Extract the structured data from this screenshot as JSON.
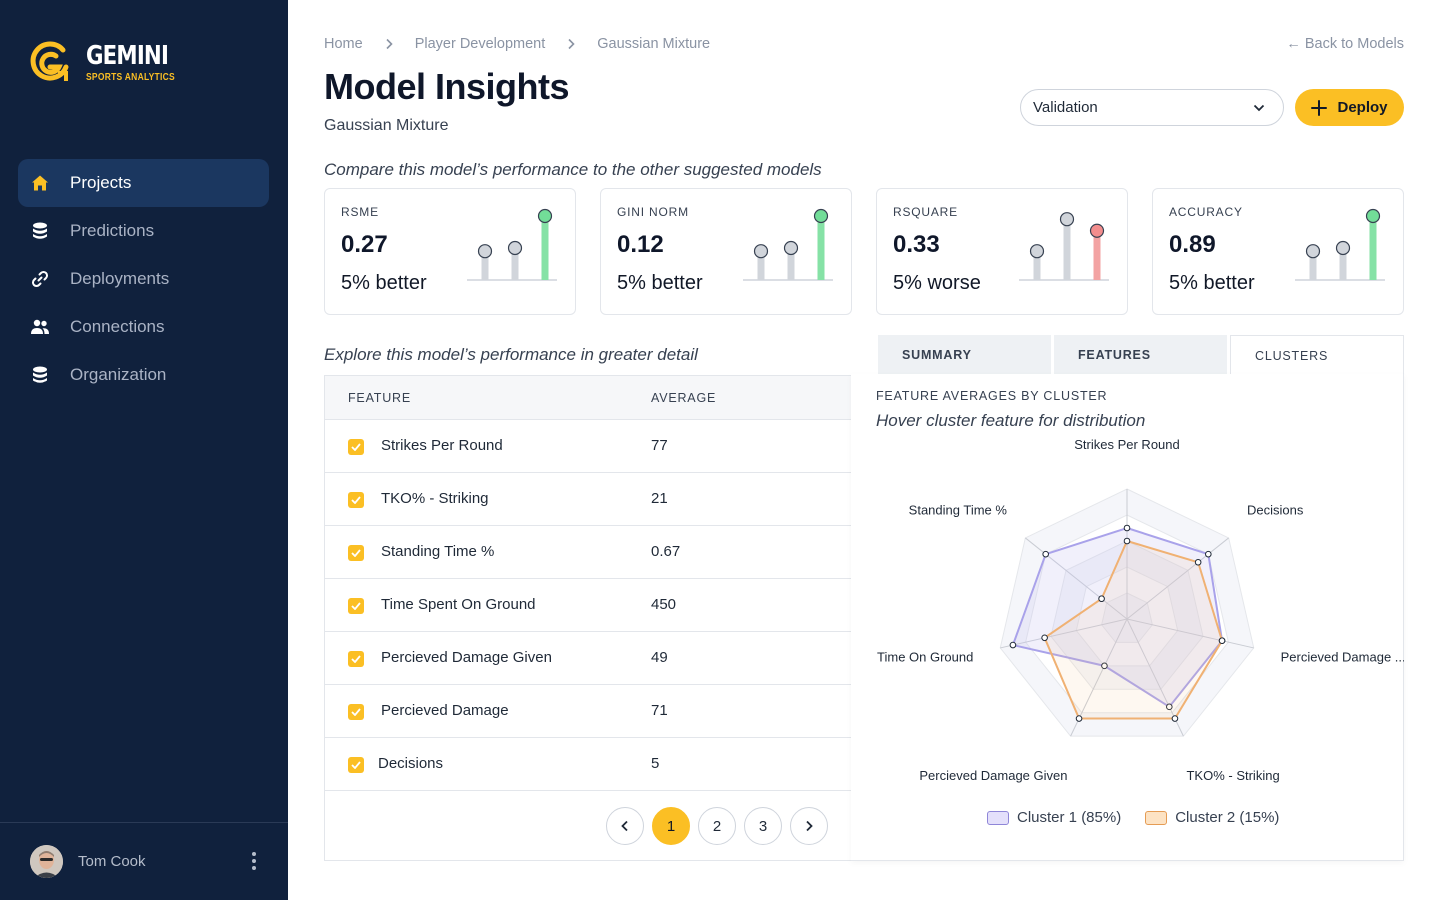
{
  "brand": {
    "name": "GEMINI",
    "tagline": "SPORTS ANALYTICS",
    "accent": "#fbbf24",
    "sidebar_bg": "#10213d"
  },
  "nav": [
    {
      "label": "Projects",
      "icon": "home-icon",
      "active": true
    },
    {
      "label": "Predictions",
      "icon": "database-icon",
      "active": false
    },
    {
      "label": "Deployments",
      "icon": "link-icon",
      "active": false
    },
    {
      "label": "Connections",
      "icon": "users-icon",
      "active": false
    },
    {
      "label": "Organization",
      "icon": "database-icon",
      "active": false
    }
  ],
  "user": {
    "name": "Tom Cook"
  },
  "breadcrumb": [
    "Home",
    "Player Development",
    "Gaussian Mixture"
  ],
  "back_link": "← Back to Models",
  "header": {
    "title": "Model Insights",
    "subtitle": "Gaussian Mixture"
  },
  "dataset_select": {
    "value": "Validation"
  },
  "deploy_label": "Deploy",
  "compare_note": "Compare this model’s performance to the other suggested models",
  "metrics": [
    {
      "label": "RSME",
      "value": "0.27",
      "note": "5% better",
      "bars": [
        0.45,
        0.5,
        1.0
      ],
      "status": "better"
    },
    {
      "label": "GINI NORM",
      "value": "0.12",
      "note": "5% better",
      "bars": [
        0.45,
        0.5,
        1.0
      ],
      "status": "better"
    },
    {
      "label": "RSQUARE",
      "value": "0.33",
      "note": "5% worse",
      "bars": [
        0.45,
        0.95,
        0.77
      ],
      "status": "worse"
    },
    {
      "label": "ACCURACY",
      "value": "0.89",
      "note": "5% better",
      "bars": [
        0.45,
        0.5,
        1.0
      ],
      "status": "better"
    }
  ],
  "detail_note": "Explore this model’s performance in greater detail",
  "tabs": [
    {
      "label": "SUMMARY",
      "active": false
    },
    {
      "label": "FEATURES",
      "active": false
    },
    {
      "label": "CLUSTERS",
      "active": true
    }
  ],
  "table": {
    "headers": [
      "FEATURE",
      "AVERAGE"
    ],
    "rows": [
      {
        "feature": "Strikes Per Round",
        "average": "77"
      },
      {
        "feature": "TKO% - Striking",
        "average": "21"
      },
      {
        "feature": "Standing Time %",
        "average": "0.67"
      },
      {
        "feature": "Time Spent On Ground",
        "average": "450"
      },
      {
        "feature": "Percieved Damage Given",
        "average": "49"
      },
      {
        "feature": "Percieved Damage",
        "average": "71"
      },
      {
        "feature": "Decisions",
        "average": "5"
      }
    ]
  },
  "pagination": {
    "pages": [
      "1",
      "2",
      "3"
    ],
    "current": "1"
  },
  "chart_data": {
    "type": "radar",
    "title": "FEATURE AVERAGES BY CLUSTER",
    "subtitle": "Hover cluster feature for distribution",
    "axes": [
      "Strikes Per Round",
      "Decisions",
      "Percieved Damage ...",
      "TKO% - Striking",
      "Percieved Damage Given",
      "Time On Ground",
      "Standing Time %"
    ],
    "series": [
      {
        "name": "Cluster 1 (85%)",
        "color": "#c7c2f0",
        "values": [
          0.7,
          0.8,
          0.75,
          0.75,
          0.4,
          0.9,
          0.8
        ]
      },
      {
        "name": "Cluster 2 (15%)",
        "color": "#f6c48f",
        "values": [
          0.6,
          0.7,
          0.75,
          0.85,
          0.85,
          0.65,
          0.25
        ]
      }
    ]
  }
}
